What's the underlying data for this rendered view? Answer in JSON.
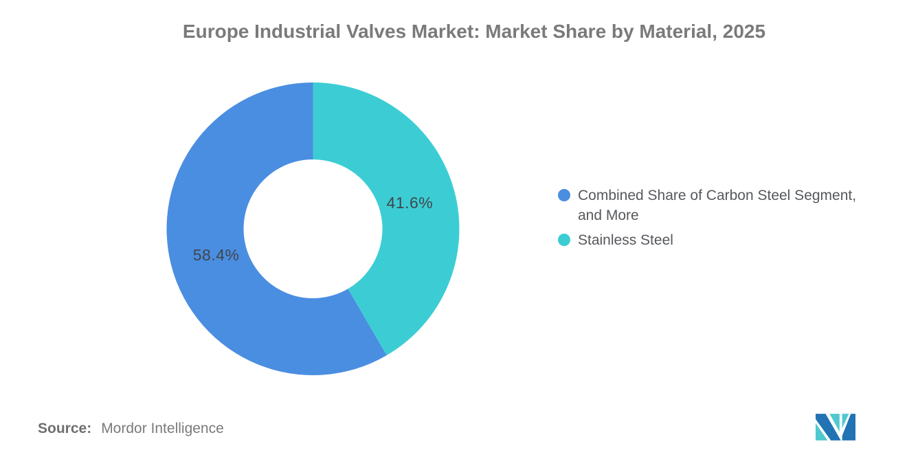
{
  "title": "Europe Industrial Valves Market: Market Share by Material, 2025",
  "chart_data": {
    "type": "pie",
    "subtype": "donut",
    "title": "Europe Industrial Valves Market: Market Share by Material, 2025",
    "inner_radius_ratio": 0.474,
    "start_angle_deg": 0,
    "direction": "clockwise-from-top",
    "legend_position": "right",
    "total": 100,
    "data_label_color": "#3f464c",
    "slices": [
      {
        "id": "carbon-steel",
        "label": "Combined Share of Carbon Steel Segment, and More",
        "value": 58.4,
        "data_label": "58.4%",
        "color": "#4a8ee1"
      },
      {
        "id": "stainless-steel",
        "label": "Stainless Steel",
        "value": 41.6,
        "data_label": "41.6%",
        "color": "#3ccdd4"
      }
    ]
  },
  "legend": {
    "items": [
      {
        "id": "carbon-steel",
        "label": "Combined Share of Carbon Steel Segment,\nand More",
        "color": "#4a8ee1"
      },
      {
        "id": "stainless-steel",
        "label": "Stainless Steel",
        "color": "#3ccdd4"
      }
    ]
  },
  "source": {
    "label": "Source:",
    "value": "Mordor Intelligence"
  },
  "logo": {
    "name": "mordor-intelligence-logo",
    "colors": {
      "blue": "#2173b4",
      "teal": "#4fc9cf"
    }
  }
}
